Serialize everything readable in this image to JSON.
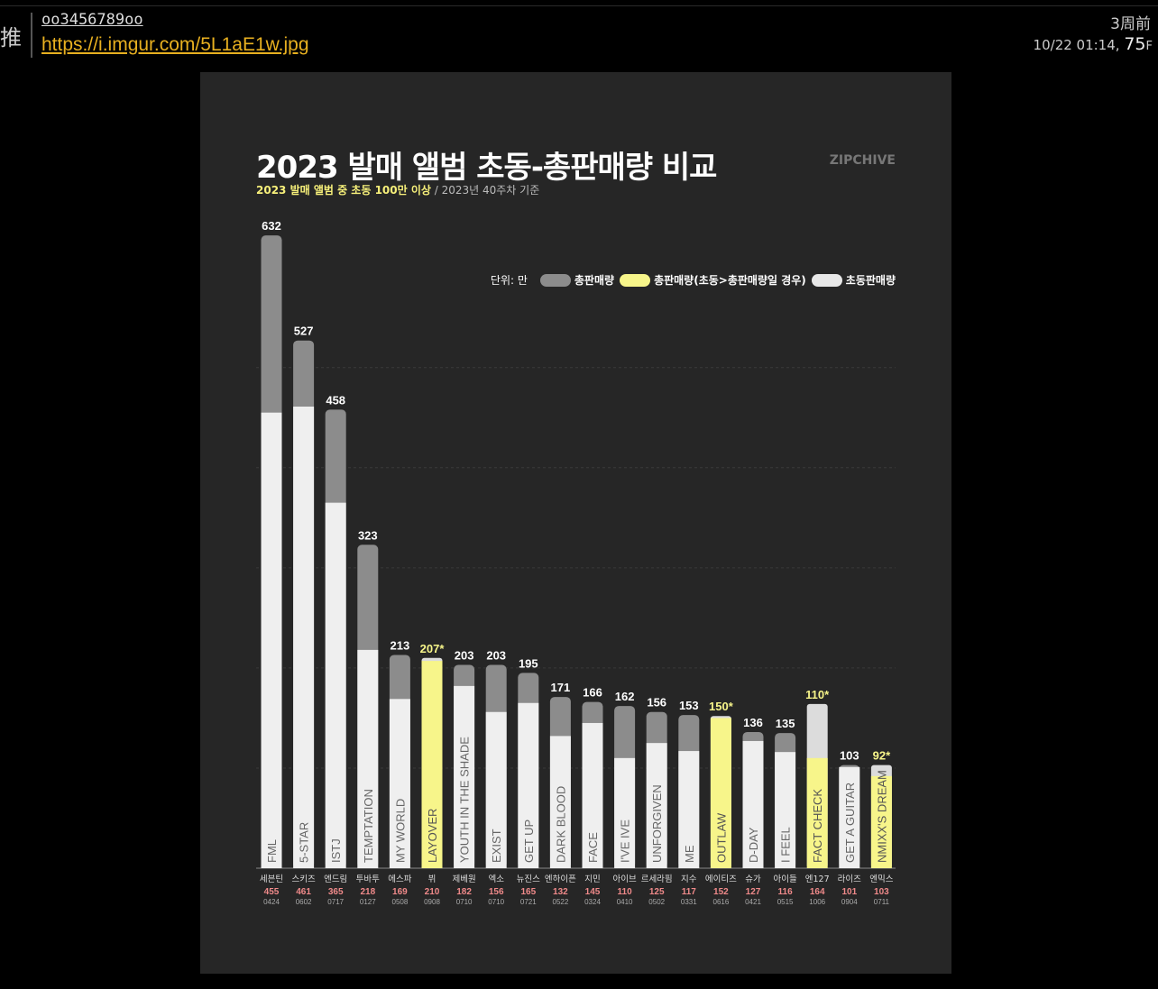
{
  "post": {
    "tag": "推",
    "username": "oo3456789oo",
    "link": "https://i.imgur.com/5L1aE1w.jpg",
    "ago": "3周前",
    "time": "10/22 01:14,",
    "floor_num": "75",
    "floor_unit": "F"
  },
  "graphic": {
    "title": "2023 발매 앨범 초동-총판매량 비교",
    "brand": "ZIPCHIVE",
    "subtitle_highlight": "2023 발매 앨범 중 초동 100만 이상",
    "subtitle_rest": " / 2023년 40주차 기준",
    "legend": {
      "unit": "단위: 만",
      "items": [
        {
          "label": "총판매량",
          "color": "#8c8c8c"
        },
        {
          "label": "총판매량(초동>총판매량일 경우)",
          "color": "#f7f58a"
        },
        {
          "label": "초동판매량",
          "color": "#e8e8e8"
        }
      ]
    }
  },
  "chart_data": {
    "type": "bar",
    "stacked": "overlap",
    "ylim": [
      0,
      650
    ],
    "grid": true,
    "colors": {
      "total": "#8c8c8c",
      "total_low": "#f7f58a",
      "first_week": "#efefef",
      "total_label": "#ffffff",
      "total_label_low": "#f7f58a",
      "week_label": "#f08a8a"
    },
    "entries": [
      {
        "artist": "세븐틴",
        "album": "FML",
        "total": 632,
        "first_week": 455,
        "date": "0424"
      },
      {
        "artist": "스키즈",
        "album": "5-STAR",
        "total": 527,
        "first_week": 461,
        "date": "0602"
      },
      {
        "artist": "엔드림",
        "album": "ISTJ",
        "total": 458,
        "first_week": 365,
        "date": "0717"
      },
      {
        "artist": "투바투",
        "album": "TEMPTATION",
        "total": 323,
        "first_week": 218,
        "date": "0127"
      },
      {
        "artist": "에스파",
        "album": "MY WORLD",
        "total": 213,
        "first_week": 169,
        "date": "0508"
      },
      {
        "artist": "뷔",
        "album": "LAYOVER",
        "total": 207,
        "total_label": "207*",
        "first_week": 210,
        "date": "0908"
      },
      {
        "artist": "제베원",
        "album": "YOUTH IN THE SHADE",
        "total": 203,
        "first_week": 182,
        "date": "0710"
      },
      {
        "artist": "엑소",
        "album": "EXIST",
        "total": 203,
        "first_week": 156,
        "date": "0710"
      },
      {
        "artist": "뉴진스",
        "album": "GET UP",
        "total": 195,
        "first_week": 165,
        "date": "0721"
      },
      {
        "artist": "엔하이픈",
        "album": "DARK BLOOD",
        "total": 171,
        "first_week": 132,
        "date": "0522"
      },
      {
        "artist": "지민",
        "album": "FACE",
        "total": 166,
        "first_week": 145,
        "date": "0324"
      },
      {
        "artist": "아이브",
        "album": "I'VE IVE",
        "total": 162,
        "first_week": 110,
        "date": "0410"
      },
      {
        "artist": "르세라핌",
        "album": "UNFORGIVEN",
        "total": 156,
        "first_week": 125,
        "date": "0502"
      },
      {
        "artist": "지수",
        "album": "ME",
        "total": 153,
        "first_week": 117,
        "date": "0331"
      },
      {
        "artist": "에이티즈",
        "album": "OUTLAW",
        "total": 150,
        "total_label": "150*",
        "first_week": 152,
        "date": "0616"
      },
      {
        "artist": "슈가",
        "album": "D-DAY",
        "total": 136,
        "first_week": 127,
        "date": "0421"
      },
      {
        "artist": "아이들",
        "album": "I FEEL",
        "total": 135,
        "first_week": 116,
        "date": "0515"
      },
      {
        "artist": "엔127",
        "album": "FACT CHECK",
        "total": 110,
        "total_label": "110*",
        "first_week": 164,
        "date": "1006"
      },
      {
        "artist": "라이즈",
        "album": "GET A GUITAR",
        "total": 103,
        "first_week": 101,
        "date": "0904"
      },
      {
        "artist": "엔믹스",
        "album": "NMIXX'S DREAM",
        "total": 92,
        "total_label": "92*",
        "first_week": 103,
        "date": "0711"
      }
    ]
  }
}
